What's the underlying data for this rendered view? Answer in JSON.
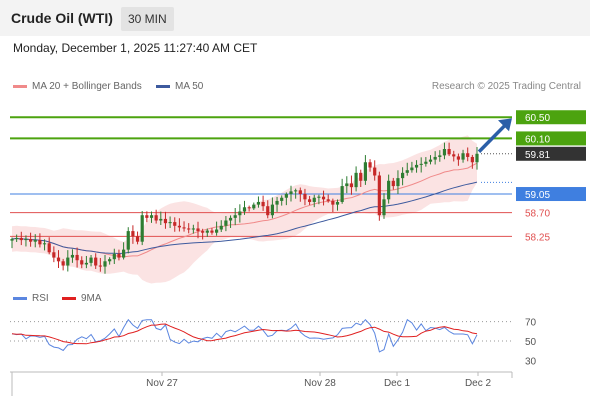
{
  "header": {
    "title": "Crude Oil (WTI)",
    "timeframe": "30 MIN"
  },
  "datetime": "Monday, December 1, 2025 11:27:40 AM CET",
  "legend": {
    "bb_label": "MA 20 + Bollinger Bands",
    "ma50_label": "MA 50",
    "rsi_label": "RSI",
    "rsi_ma_label": "9MA",
    "copyright": "Research © 2025 Trading Central"
  },
  "colors": {
    "up": "#2e7d32",
    "down": "#c62828",
    "bb_fill": "#fadada",
    "ma20": "#f08a8a",
    "ma50": "#3d5a9e",
    "target": "#4ca30f",
    "pivot": "#3f7fe0",
    "support": "#e05050",
    "current": "#333333",
    "rsi": "#5b86e0",
    "rsi_ma": "#e02020",
    "arrow": "#2b5fa8"
  },
  "chart_data": {
    "type": "candlestick",
    "x_ticks": [
      "Nov 27",
      "Nov 28",
      "Dec 1",
      "Dec 2"
    ],
    "ylim": [
      57.2,
      60.75
    ],
    "levels": [
      {
        "value": 60.5,
        "label": "60.50",
        "kind": "target"
      },
      {
        "value": 60.1,
        "label": "60.10",
        "kind": "target"
      },
      {
        "value": 59.81,
        "label": "59.81",
        "kind": "current"
      },
      {
        "value": 59.05,
        "label": "59.05",
        "kind": "pivot"
      },
      {
        "value": 58.7,
        "label": "58.70",
        "kind": "support"
      },
      {
        "value": 58.25,
        "label": "58.25",
        "kind": "support"
      }
    ],
    "close": [
      58.2,
      58.22,
      58.18,
      58.2,
      58.15,
      58.18,
      58.1,
      58.12,
      57.95,
      57.85,
      57.78,
      57.7,
      57.85,
      57.9,
      57.8,
      57.72,
      57.75,
      57.85,
      57.7,
      57.68,
      57.78,
      57.82,
      57.92,
      57.85,
      58.0,
      58.35,
      58.25,
      58.15,
      58.65,
      58.6,
      58.65,
      58.55,
      58.58,
      58.5,
      58.52,
      58.45,
      58.42,
      58.4,
      58.38,
      58.4,
      58.35,
      58.32,
      58.36,
      58.32,
      58.38,
      58.45,
      58.55,
      58.6,
      58.65,
      58.72,
      58.8,
      58.78,
      58.85,
      58.9,
      58.82,
      58.65,
      58.85,
      58.92,
      58.98,
      59.05,
      59.1,
      59.12,
      59.05,
      58.95,
      58.9,
      58.98,
      59.0,
      58.95,
      58.92,
      58.85,
      58.9,
      59.2,
      59.25,
      59.18,
      59.45,
      59.3,
      59.65,
      59.55,
      59.4,
      58.65,
      58.95,
      59.3,
      59.2,
      59.35,
      59.45,
      59.5,
      59.55,
      59.6,
      59.62,
      59.66,
      59.7,
      59.75,
      59.78,
      59.9,
      59.8,
      59.76,
      59.7,
      59.82,
      59.75,
      59.65,
      59.81
    ],
    "rsi": {
      "ylim": [
        20,
        80
      ],
      "ticks": [
        70,
        50,
        30
      ]
    }
  }
}
